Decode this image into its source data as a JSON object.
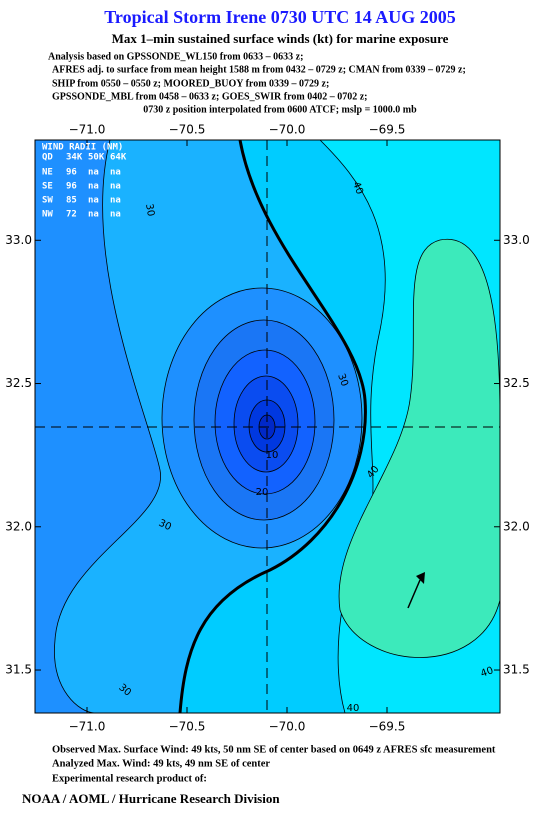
{
  "header": {
    "title": "Tropical Storm Irene 0730 UTC 14 AUG 2005",
    "subtitle": "Max 1–min sustained surface winds (kt) for marine exposure",
    "lines": [
      "Analysis based on  GPSSONDE_WL150 from 0633 – 0633 z;",
      "AFRES adj. to surface from mean height 1588 m from 0432 – 0729 z;  CMAN from 0339 – 0729 z;",
      "SHIP from 0550 – 0550 z;  MOORED_BUOY from 0339 – 0729 z;",
      "GPSSONDE_MBL from 0458 – 0633 z;  GOES_SWIR from 0402 – 0702 z;",
      "0730 z position interpolated from 0600 ATCF; mslp = 1000.0 mb"
    ]
  },
  "map": {
    "xlim": [
      -71.26,
      -68.935
    ],
    "ylim": [
      31.35,
      33.35
    ],
    "xticks": [
      {
        "value": -71.0,
        "label": "−71.0"
      },
      {
        "value": -70.5,
        "label": "−70.5"
      },
      {
        "value": -70.0,
        "label": "−70.0"
      },
      {
        "value": -69.5,
        "label": "−69.5"
      }
    ],
    "yticks": [
      {
        "value": 31.5,
        "label": "31.5"
      },
      {
        "value": 32.0,
        "label": "32.0"
      },
      {
        "value": 32.5,
        "label": "32.5"
      },
      {
        "value": 33.0,
        "label": "33.0"
      }
    ],
    "contour_labels": [
      "30",
      "40",
      "30",
      "10",
      "20",
      "30",
      "40",
      "30",
      "40",
      "40"
    ],
    "wind_radii": {
      "title": "WIND RADII (NM)",
      "header": [
        "QD",
        "34K",
        "50K",
        "64K"
      ],
      "rows": [
        [
          "NE",
          "96",
          "na",
          "na"
        ],
        [
          "SE",
          "96",
          "na",
          "na"
        ],
        [
          "SW",
          "85",
          "na",
          "na"
        ],
        [
          "NW",
          "72",
          "na",
          "na"
        ]
      ]
    }
  },
  "footer": {
    "observed": "Observed Max. Surface Wind: 49 kts, 50 nm SE of center based on 0649 z AFRES sfc measurement",
    "analyzed": "Analyzed Max. Wind: 49 kts, 49 nm SE of center",
    "note": "Experimental research product of:",
    "org": "NOAA / AOML / Hurricane Research Division"
  }
}
